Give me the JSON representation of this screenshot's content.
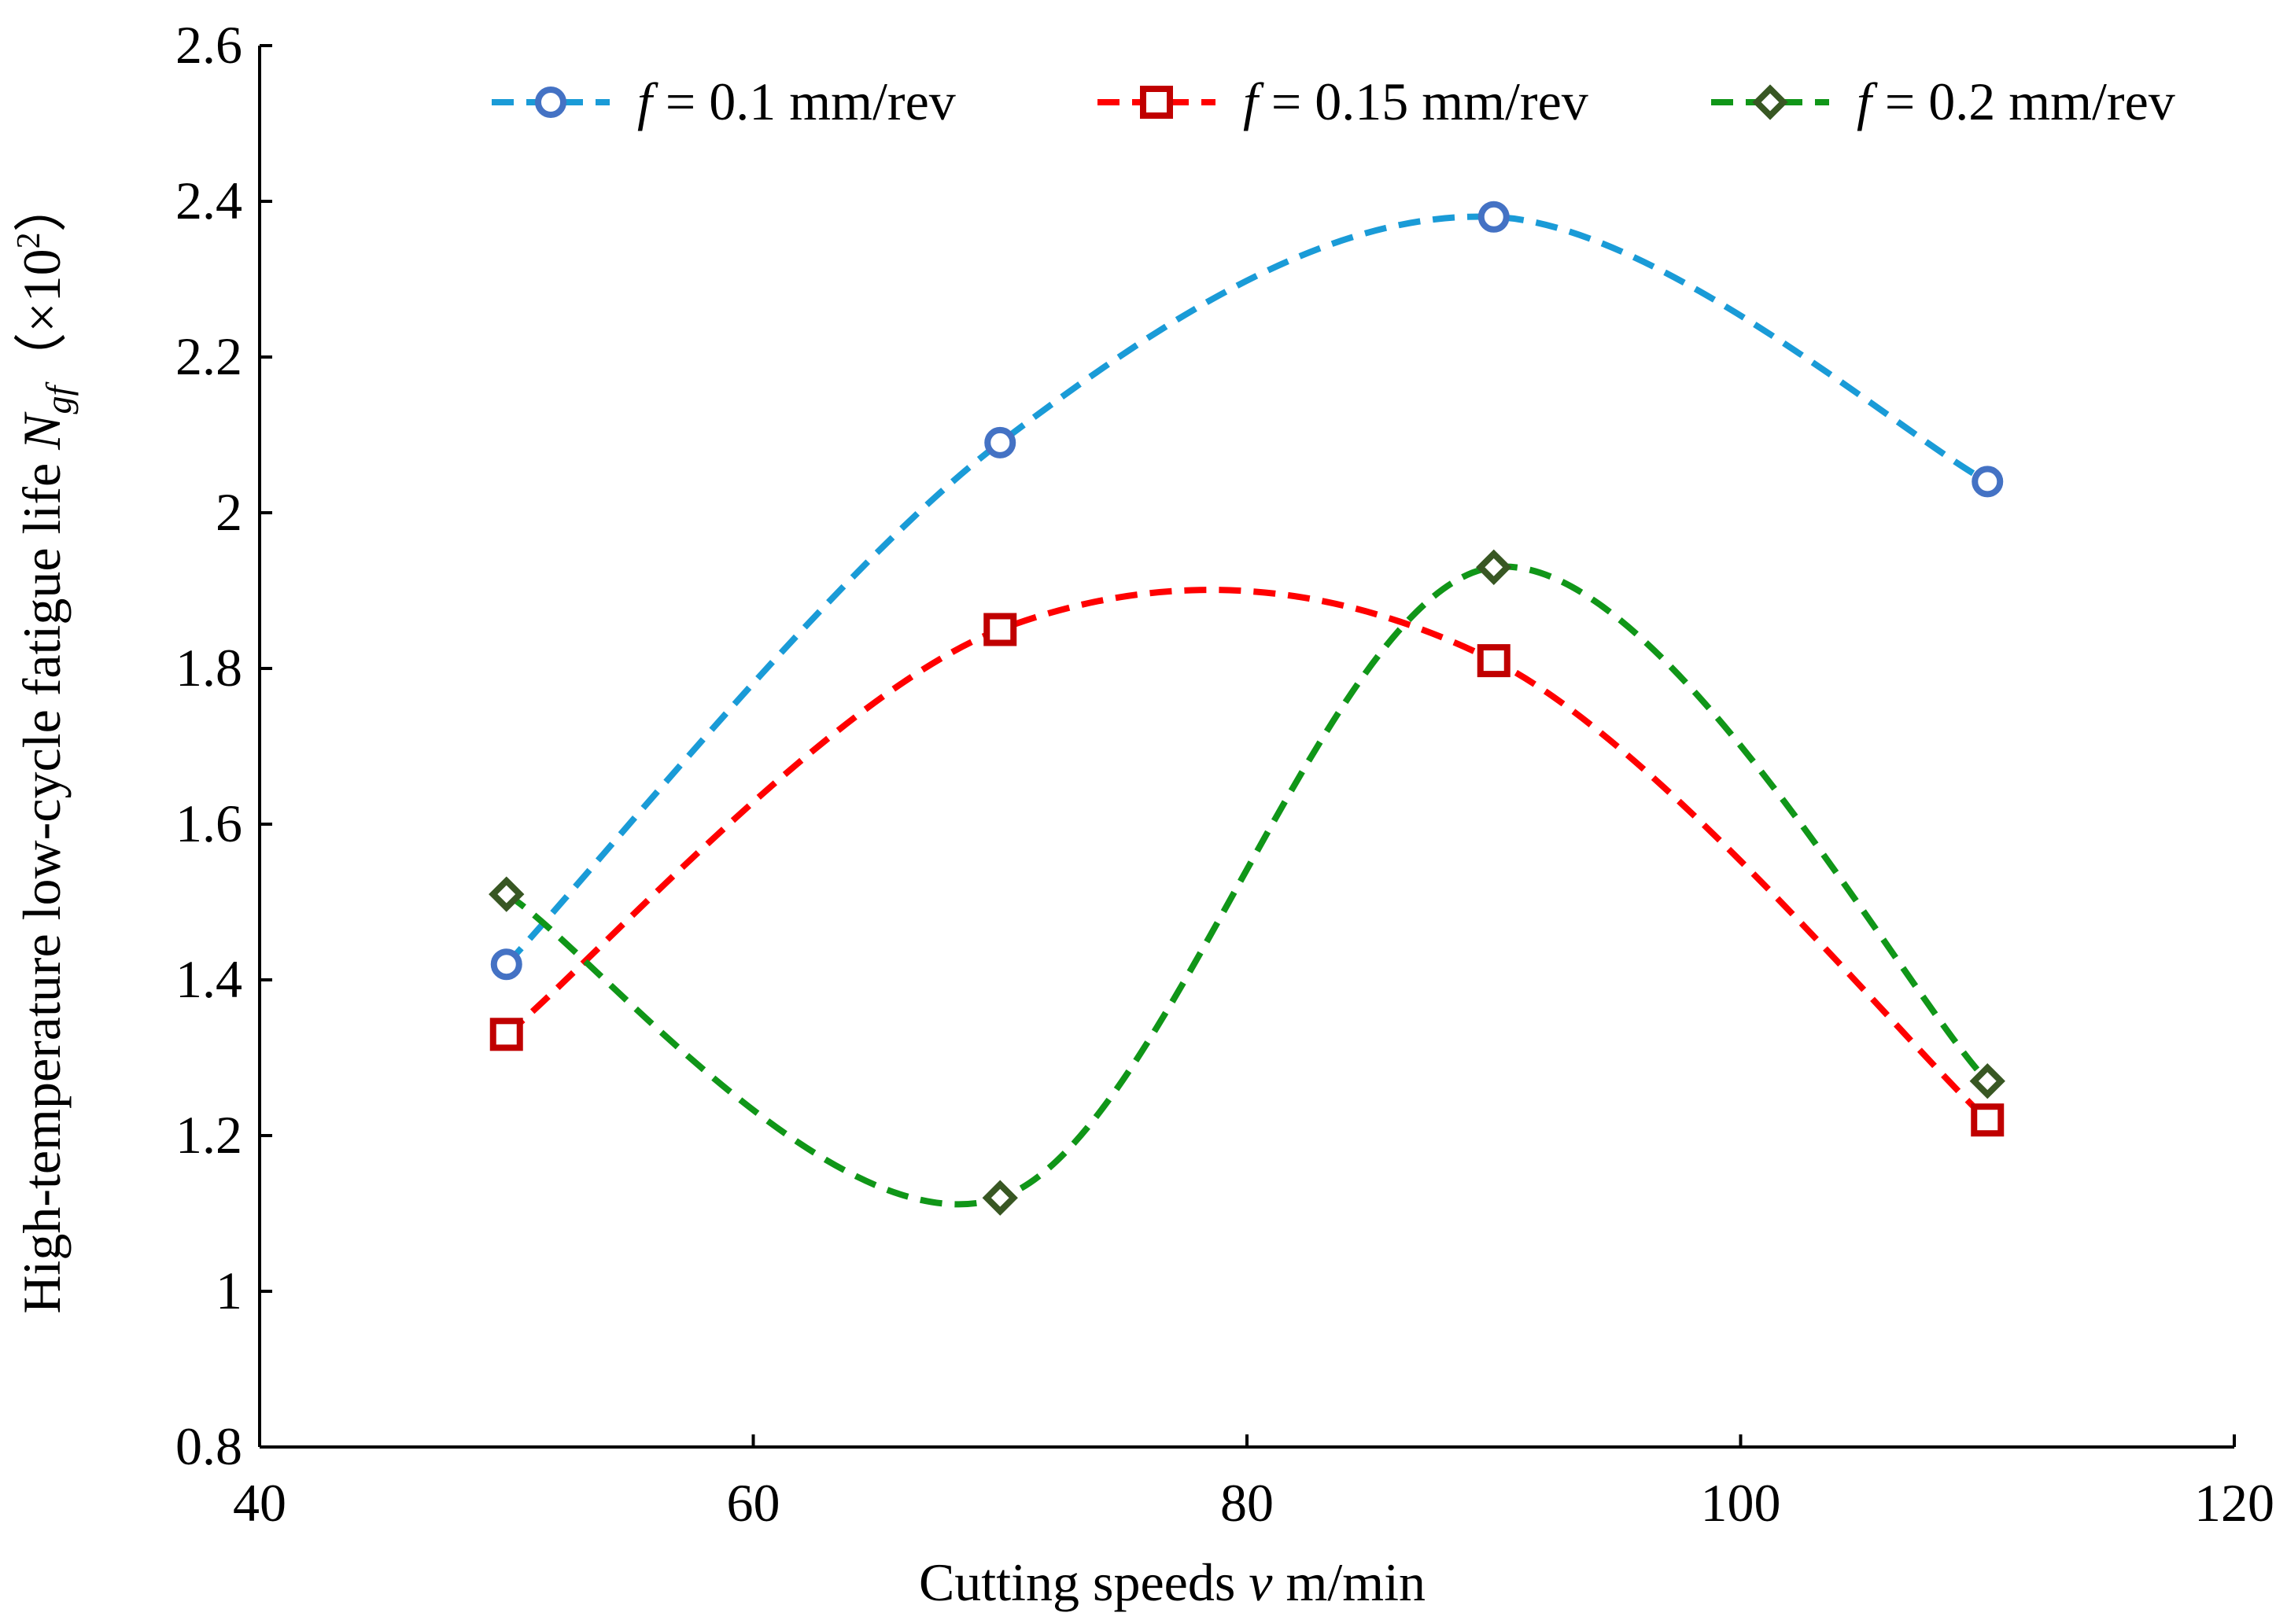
{
  "chart_data": {
    "type": "line",
    "xlabel": {
      "prefix": "Cutting speeds ",
      "var": "v",
      "suffix": " m/min"
    },
    "ylabel": {
      "text": "High-temperature low-cycle fatigue life ",
      "var": "N",
      "sub": "gf",
      "unit_open": "（×10",
      "unit_sup": "2",
      "unit_close": "）"
    },
    "xlim": [
      40,
      120
    ],
    "ylim": [
      0.8,
      2.6
    ],
    "x_ticks": [
      40,
      60,
      80,
      100,
      120
    ],
    "x_tick_labels": [
      "40",
      "60",
      "80",
      "100",
      "120"
    ],
    "y_ticks": [
      0.8,
      1.0,
      1.2,
      1.4,
      1.6,
      1.8,
      2.0,
      2.2,
      2.4,
      2.6
    ],
    "y_tick_labels": [
      "0.8",
      "1",
      "1.2",
      "1.4",
      "1.6",
      "1.8",
      "2",
      "2.2",
      "2.4",
      "2.6"
    ],
    "grid": false,
    "legend_position": "top",
    "x": [
      50,
      70,
      90,
      110
    ],
    "series": [
      {
        "name_var": "f",
        "name_rest": " = 0.1 mm/rev",
        "values": [
          1.42,
          2.09,
          2.38,
          2.04
        ],
        "line_color": "#1a9bd7",
        "marker": "circle",
        "marker_color": "#4472c4"
      },
      {
        "name_var": "f",
        "name_rest": " = 0.15 mm/rev",
        "values": [
          1.33,
          1.85,
          1.81,
          1.22
        ],
        "line_color": "#ff0000",
        "marker": "square",
        "marker_color": "#c00000"
      },
      {
        "name_var": "f",
        "name_rest": " = 0.2 mm/rev",
        "values": [
          1.51,
          1.12,
          1.93,
          1.27
        ],
        "line_color": "#109618",
        "marker": "diamond",
        "marker_color": "#385723"
      }
    ]
  }
}
